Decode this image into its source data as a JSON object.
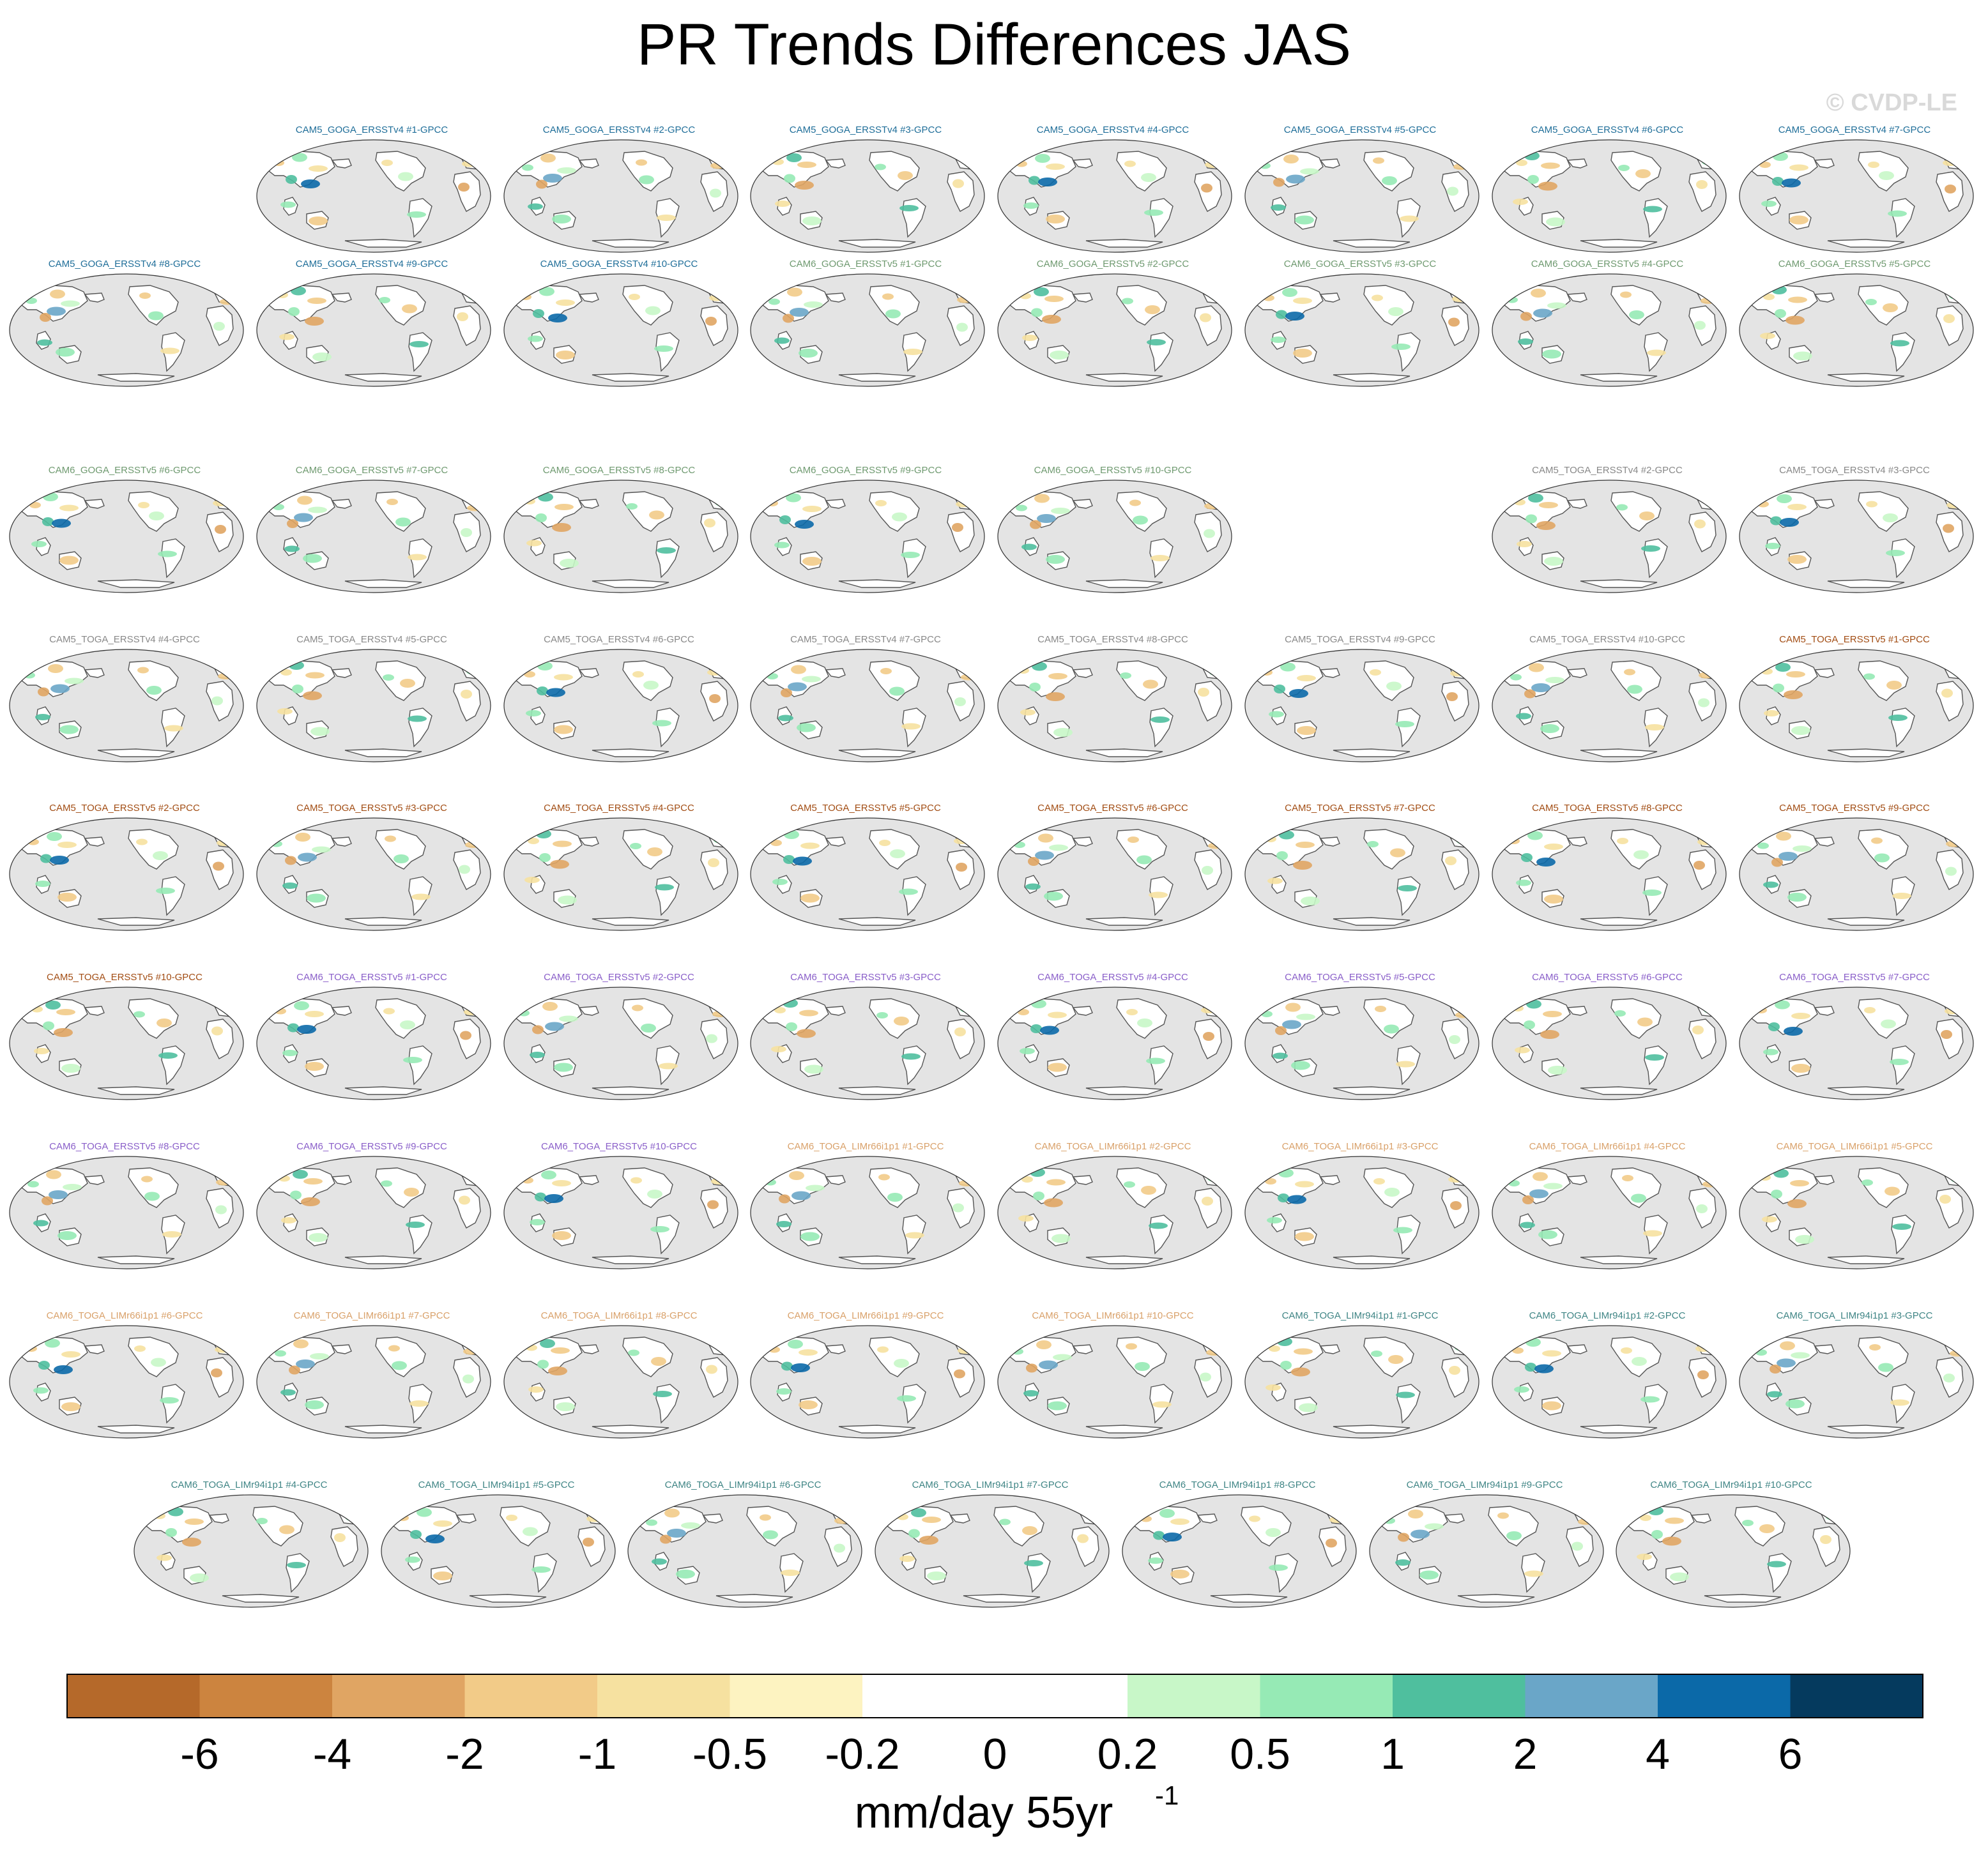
{
  "title": "PR Trends Differences JAS",
  "watermark": "© CVDP-LE",
  "group_colors": {
    "CAM5_GOGA_ERSSTv4": "#1f6e99",
    "CAM6_GOGA_ERSSTv5": "#6f9a70",
    "CAM5_TOGA_ERSSTv4": "#888888",
    "CAM5_TOGA_ERSSTv5": "#a24d14",
    "CAM6_TOGA_ERSSTv5": "#8a5fc9",
    "CAM6_TOGA_LIMr66i1p1": "#d9a16a",
    "CAM6_TOGA_LIMr94i1p1": "#3f8585"
  },
  "map_colors": {
    "ocean": "#e4e4e4",
    "outline": "#555555",
    "land": "#ffffff"
  },
  "panels": [
    {
      "label": "CAM5_GOGA_ERSSTv4 #1-GPCC",
      "group": "CAM5_GOGA_ERSSTv4",
      "row": 0,
      "col": 1
    },
    {
      "label": "CAM5_GOGA_ERSSTv4 #2-GPCC",
      "group": "CAM5_GOGA_ERSSTv4",
      "row": 0,
      "col": 2
    },
    {
      "label": "CAM5_GOGA_ERSSTv4 #3-GPCC",
      "group": "CAM5_GOGA_ERSSTv4",
      "row": 0,
      "col": 3
    },
    {
      "label": "CAM5_GOGA_ERSSTv4 #4-GPCC",
      "group": "CAM5_GOGA_ERSSTv4",
      "row": 0,
      "col": 4
    },
    {
      "label": "CAM5_GOGA_ERSSTv4 #5-GPCC",
      "group": "CAM5_GOGA_ERSSTv4",
      "row": 0,
      "col": 5
    },
    {
      "label": "CAM5_GOGA_ERSSTv4 #6-GPCC",
      "group": "CAM5_GOGA_ERSSTv4",
      "row": 0,
      "col": 6
    },
    {
      "label": "CAM5_GOGA_ERSSTv4 #7-GPCC",
      "group": "CAM5_GOGA_ERSSTv4",
      "row": 0,
      "col": 7
    },
    {
      "label": "CAM5_GOGA_ERSSTv4 #8-GPCC",
      "group": "CAM5_GOGA_ERSSTv4",
      "row": 1,
      "col": 0
    },
    {
      "label": "CAM5_GOGA_ERSSTv4 #9-GPCC",
      "group": "CAM5_GOGA_ERSSTv4",
      "row": 1,
      "col": 1
    },
    {
      "label": "CAM5_GOGA_ERSSTv4 #10-GPCC",
      "group": "CAM5_GOGA_ERSSTv4",
      "row": 1,
      "col": 2
    },
    {
      "label": "CAM6_GOGA_ERSSTv5 #1-GPCC",
      "group": "CAM6_GOGA_ERSSTv5",
      "row": 1,
      "col": 3
    },
    {
      "label": "CAM6_GOGA_ERSSTv5 #2-GPCC",
      "group": "CAM6_GOGA_ERSSTv5",
      "row": 1,
      "col": 4
    },
    {
      "label": "CAM6_GOGA_ERSSTv5 #3-GPCC",
      "group": "CAM6_GOGA_ERSSTv5",
      "row": 1,
      "col": 5
    },
    {
      "label": "CAM6_GOGA_ERSSTv5 #4-GPCC",
      "group": "CAM6_GOGA_ERSSTv5",
      "row": 1,
      "col": 6
    },
    {
      "label": "CAM6_GOGA_ERSSTv5 #5-GPCC",
      "group": "CAM6_GOGA_ERSSTv5",
      "row": 1,
      "col": 7
    },
    {
      "label": "CAM6_GOGA_ERSSTv5 #6-GPCC",
      "group": "CAM6_GOGA_ERSSTv5",
      "row": 2,
      "col": 0
    },
    {
      "label": "CAM6_GOGA_ERSSTv5 #7-GPCC",
      "group": "CAM6_GOGA_ERSSTv5",
      "row": 2,
      "col": 1
    },
    {
      "label": "CAM6_GOGA_ERSSTv5 #8-GPCC",
      "group": "CAM6_GOGA_ERSSTv5",
      "row": 2,
      "col": 2
    },
    {
      "label": "CAM6_GOGA_ERSSTv5 #9-GPCC",
      "group": "CAM6_GOGA_ERSSTv5",
      "row": 2,
      "col": 3
    },
    {
      "label": "CAM6_GOGA_ERSSTv5 #10-GPCC",
      "group": "CAM6_GOGA_ERSSTv5",
      "row": 2,
      "col": 4
    },
    {
      "label": "CAM5_TOGA_ERSSTv4 #2-GPCC",
      "group": "CAM5_TOGA_ERSSTv4",
      "row": 2,
      "col": 6
    },
    {
      "label": "CAM5_TOGA_ERSSTv4 #3-GPCC",
      "group": "CAM5_TOGA_ERSSTv4",
      "row": 2,
      "col": 7
    },
    {
      "label": "CAM5_TOGA_ERSSTv4 #4-GPCC",
      "group": "CAM5_TOGA_ERSSTv4",
      "row": 3,
      "col": 0
    },
    {
      "label": "CAM5_TOGA_ERSSTv4 #5-GPCC",
      "group": "CAM5_TOGA_ERSSTv4",
      "row": 3,
      "col": 1
    },
    {
      "label": "CAM5_TOGA_ERSSTv4 #6-GPCC",
      "group": "CAM5_TOGA_ERSSTv4",
      "row": 3,
      "col": 2
    },
    {
      "label": "CAM5_TOGA_ERSSTv4 #7-GPCC",
      "group": "CAM5_TOGA_ERSSTv4",
      "row": 3,
      "col": 3
    },
    {
      "label": "CAM5_TOGA_ERSSTv4 #8-GPCC",
      "group": "CAM5_TOGA_ERSSTv4",
      "row": 3,
      "col": 4
    },
    {
      "label": "CAM5_TOGA_ERSSTv4 #9-GPCC",
      "group": "CAM5_TOGA_ERSSTv4",
      "row": 3,
      "col": 5
    },
    {
      "label": "CAM5_TOGA_ERSSTv4 #10-GPCC",
      "group": "CAM5_TOGA_ERSSTv4",
      "row": 3,
      "col": 6
    },
    {
      "label": "CAM5_TOGA_ERSSTv5 #1-GPCC",
      "group": "CAM5_TOGA_ERSSTv5",
      "row": 3,
      "col": 7
    },
    {
      "label": "CAM5_TOGA_ERSSTv5 #2-GPCC",
      "group": "CAM5_TOGA_ERSSTv5",
      "row": 4,
      "col": 0
    },
    {
      "label": "CAM5_TOGA_ERSSTv5 #3-GPCC",
      "group": "CAM5_TOGA_ERSSTv5",
      "row": 4,
      "col": 1
    },
    {
      "label": "CAM5_TOGA_ERSSTv5 #4-GPCC",
      "group": "CAM5_TOGA_ERSSTv5",
      "row": 4,
      "col": 2
    },
    {
      "label": "CAM5_TOGA_ERSSTv5 #5-GPCC",
      "group": "CAM5_TOGA_ERSSTv5",
      "row": 4,
      "col": 3
    },
    {
      "label": "CAM5_TOGA_ERSSTv5 #6-GPCC",
      "group": "CAM5_TOGA_ERSSTv5",
      "row": 4,
      "col": 4
    },
    {
      "label": "CAM5_TOGA_ERSSTv5 #7-GPCC",
      "group": "CAM5_TOGA_ERSSTv5",
      "row": 4,
      "col": 5
    },
    {
      "label": "CAM5_TOGA_ERSSTv5 #8-GPCC",
      "group": "CAM5_TOGA_ERSSTv5",
      "row": 4,
      "col": 6
    },
    {
      "label": "CAM5_TOGA_ERSSTv5 #9-GPCC",
      "group": "CAM5_TOGA_ERSSTv5",
      "row": 4,
      "col": 7
    },
    {
      "label": "CAM5_TOGA_ERSSTv5 #10-GPCC",
      "group": "CAM5_TOGA_ERSSTv5",
      "row": 5,
      "col": 0
    },
    {
      "label": "CAM6_TOGA_ERSSTv5 #1-GPCC",
      "group": "CAM6_TOGA_ERSSTv5",
      "row": 5,
      "col": 1
    },
    {
      "label": "CAM6_TOGA_ERSSTv5 #2-GPCC",
      "group": "CAM6_TOGA_ERSSTv5",
      "row": 5,
      "col": 2
    },
    {
      "label": "CAM6_TOGA_ERSSTv5 #3-GPCC",
      "group": "CAM6_TOGA_ERSSTv5",
      "row": 5,
      "col": 3
    },
    {
      "label": "CAM6_TOGA_ERSSTv5 #4-GPCC",
      "group": "CAM6_TOGA_ERSSTv5",
      "row": 5,
      "col": 4
    },
    {
      "label": "CAM6_TOGA_ERSSTv5 #5-GPCC",
      "group": "CAM6_TOGA_ERSSTv5",
      "row": 5,
      "col": 5
    },
    {
      "label": "CAM6_TOGA_ERSSTv5 #6-GPCC",
      "group": "CAM6_TOGA_ERSSTv5",
      "row": 5,
      "col": 6
    },
    {
      "label": "CAM6_TOGA_ERSSTv5 #7-GPCC",
      "group": "CAM6_TOGA_ERSSTv5",
      "row": 5,
      "col": 7
    },
    {
      "label": "CAM6_TOGA_ERSSTv5 #8-GPCC",
      "group": "CAM6_TOGA_ERSSTv5",
      "row": 6,
      "col": 0
    },
    {
      "label": "CAM6_TOGA_ERSSTv5 #9-GPCC",
      "group": "CAM6_TOGA_ERSSTv5",
      "row": 6,
      "col": 1
    },
    {
      "label": "CAM6_TOGA_ERSSTv5 #10-GPCC",
      "group": "CAM6_TOGA_ERSSTv5",
      "row": 6,
      "col": 2
    },
    {
      "label": "CAM6_TOGA_LIMr66i1p1 #1-GPCC",
      "group": "CAM6_TOGA_LIMr66i1p1",
      "row": 6,
      "col": 3
    },
    {
      "label": "CAM6_TOGA_LIMr66i1p1 #2-GPCC",
      "group": "CAM6_TOGA_LIMr66i1p1",
      "row": 6,
      "col": 4
    },
    {
      "label": "CAM6_TOGA_LIMr66i1p1 #3-GPCC",
      "group": "CAM6_TOGA_LIMr66i1p1",
      "row": 6,
      "col": 5
    },
    {
      "label": "CAM6_TOGA_LIMr66i1p1 #4-GPCC",
      "group": "CAM6_TOGA_LIMr66i1p1",
      "row": 6,
      "col": 6
    },
    {
      "label": "CAM6_TOGA_LIMr66i1p1 #5-GPCC",
      "group": "CAM6_TOGA_LIMr66i1p1",
      "row": 6,
      "col": 7
    },
    {
      "label": "CAM6_TOGA_LIMr66i1p1 #6-GPCC",
      "group": "CAM6_TOGA_LIMr66i1p1",
      "row": 7,
      "col": 0
    },
    {
      "label": "CAM6_TOGA_LIMr66i1p1 #7-GPCC",
      "group": "CAM6_TOGA_LIMr66i1p1",
      "row": 7,
      "col": 1
    },
    {
      "label": "CAM6_TOGA_LIMr66i1p1 #8-GPCC",
      "group": "CAM6_TOGA_LIMr66i1p1",
      "row": 7,
      "col": 2
    },
    {
      "label": "CAM6_TOGA_LIMr66i1p1 #9-GPCC",
      "group": "CAM6_TOGA_LIMr66i1p1",
      "row": 7,
      "col": 3
    },
    {
      "label": "CAM6_TOGA_LIMr66i1p1 #10-GPCC",
      "group": "CAM6_TOGA_LIMr66i1p1",
      "row": 7,
      "col": 4
    },
    {
      "label": "CAM6_TOGA_LIMr94i1p1 #1-GPCC",
      "group": "CAM6_TOGA_LIMr94i1p1",
      "row": 7,
      "col": 5
    },
    {
      "label": "CAM6_TOGA_LIMr94i1p1 #2-GPCC",
      "group": "CAM6_TOGA_LIMr94i1p1",
      "row": 7,
      "col": 6
    },
    {
      "label": "CAM6_TOGA_LIMr94i1p1 #3-GPCC",
      "group": "CAM6_TOGA_LIMr94i1p1",
      "row": 7,
      "col": 7
    },
    {
      "label": "CAM6_TOGA_LIMr94i1p1 #4-GPCC",
      "group": "CAM6_TOGA_LIMr94i1p1",
      "row": 8,
      "col": 0
    },
    {
      "label": "CAM6_TOGA_LIMr94i1p1 #5-GPCC",
      "group": "CAM6_TOGA_LIMr94i1p1",
      "row": 8,
      "col": 1
    },
    {
      "label": "CAM6_TOGA_LIMr94i1p1 #6-GPCC",
      "group": "CAM6_TOGA_LIMr94i1p1",
      "row": 8,
      "col": 2
    },
    {
      "label": "CAM6_TOGA_LIMr94i1p1 #7-GPCC",
      "group": "CAM6_TOGA_LIMr94i1p1",
      "row": 8,
      "col": 3
    },
    {
      "label": "CAM6_TOGA_LIMr94i1p1 #8-GPCC",
      "group": "CAM6_TOGA_LIMr94i1p1",
      "row": 8,
      "col": 4
    },
    {
      "label": "CAM6_TOGA_LIMr94i1p1 #9-GPCC",
      "group": "CAM6_TOGA_LIMr94i1p1",
      "row": 8,
      "col": 5
    },
    {
      "label": "CAM6_TOGA_LIMr94i1p1 #10-GPCC",
      "group": "CAM6_TOGA_LIMr94i1p1",
      "row": 8,
      "col": 6
    }
  ],
  "chart_data": {
    "type": "heatmap",
    "title": "PR Trends Differences JAS",
    "projection": "robinson-pacific-centered",
    "colorbar": {
      "label_main": "mm/day 55yr",
      "label_sup": "-1",
      "ticks": [
        "-6",
        "-4",
        "-2",
        "-1",
        "-0.5",
        "-0.2",
        "0",
        "0.2",
        "0.5",
        "1",
        "2",
        "4",
        "6"
      ],
      "colors": [
        "#b5692a",
        "#cc843f",
        "#e0a563",
        "#f2cb88",
        "#f6e1a0",
        "#fdf3c1",
        "#ffffff",
        "#ffffff",
        "#c8f7c8",
        "#96eab5",
        "#4fbf9e",
        "#6aa6c8",
        "#0b69a8",
        "#053a5e"
      ],
      "placement": "bottom"
    }
  }
}
